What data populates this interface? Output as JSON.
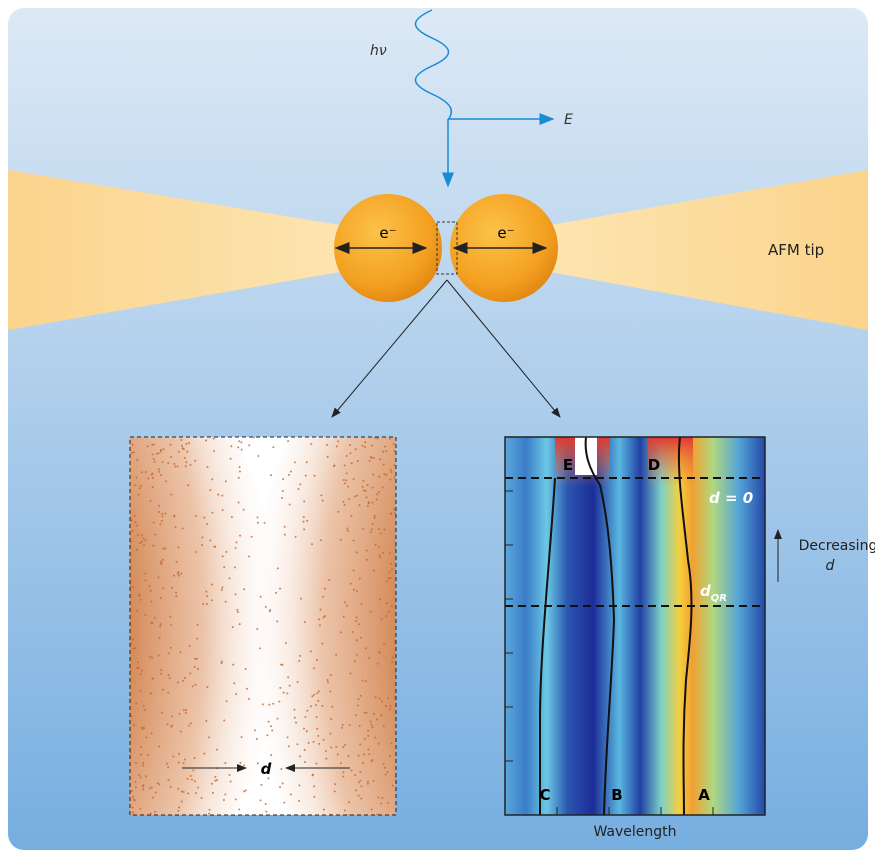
{
  "photon": {
    "label": "hν",
    "field_label": "E"
  },
  "gap": {
    "left_electron": "e⁻",
    "right_electron": "e⁻"
  },
  "tip_label": "AFM tip",
  "simulation": {
    "gap_label": "d"
  },
  "spectrum": {
    "mode_labels": [
      "E",
      "D",
      "C",
      "B",
      "A"
    ],
    "contact_label": "d = 0",
    "quantum_label": {
      "symbol": "d",
      "subscript": "QR"
    },
    "trend_label": {
      "text": "Decreasing",
      "symbol": "d"
    },
    "x_label": "Wavelength"
  }
}
